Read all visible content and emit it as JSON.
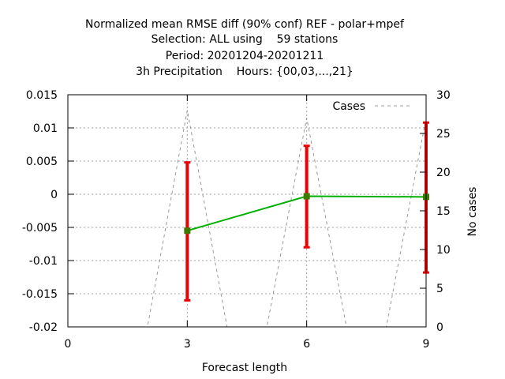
{
  "chart_data": {
    "type": "line",
    "title_lines": [
      "Normalized mean RMSE diff (90% conf) REF - polar+mpef",
      "Selection: ALL using    59 stations",
      "Period: 20201204-20201211",
      "3h Precipitation    Hours: {00,03,...,21}"
    ],
    "xlabel": "Forecast length",
    "ylabel": "",
    "y2label": "No cases",
    "xlim": [
      0,
      9
    ],
    "ylim": [
      -0.02,
      0.015
    ],
    "y2lim": [
      0,
      30
    ],
    "x_ticks": [
      0,
      3,
      6,
      9
    ],
    "y_ticks": [
      -0.02,
      -0.015,
      -0.01,
      -0.005,
      0,
      0.005,
      0.01,
      0.015
    ],
    "y_tick_labels": [
      "-0.02",
      "-0.015",
      "-0.01",
      "-0.005",
      "0",
      "0.005",
      "0.01",
      "0.015"
    ],
    "y2_ticks": [
      0,
      5,
      10,
      15,
      20,
      25,
      30
    ],
    "grid": true,
    "legend_position": "top-right",
    "series": [
      {
        "name": "",
        "kind": "line-with-errorbars",
        "color": "#00b000",
        "marker_color": "#3c7a00",
        "errorbar_color": "#ee0000",
        "x": [
          3,
          6,
          9
        ],
        "y": [
          -0.0055,
          -0.0003,
          -0.0004
        ],
        "y_low": [
          -0.016,
          -0.008,
          -0.0118
        ],
        "y_high": [
          0.0048,
          0.0073,
          0.0108
        ]
      },
      {
        "name": "Cases",
        "kind": "dashed-line",
        "axis": "y2",
        "color": "#999999",
        "x": [
          0,
          2,
          3,
          4,
          5,
          6,
          7,
          8,
          9
        ],
        "y": [
          0,
          0,
          28,
          0,
          0,
          27,
          0,
          0,
          27
        ]
      }
    ]
  }
}
